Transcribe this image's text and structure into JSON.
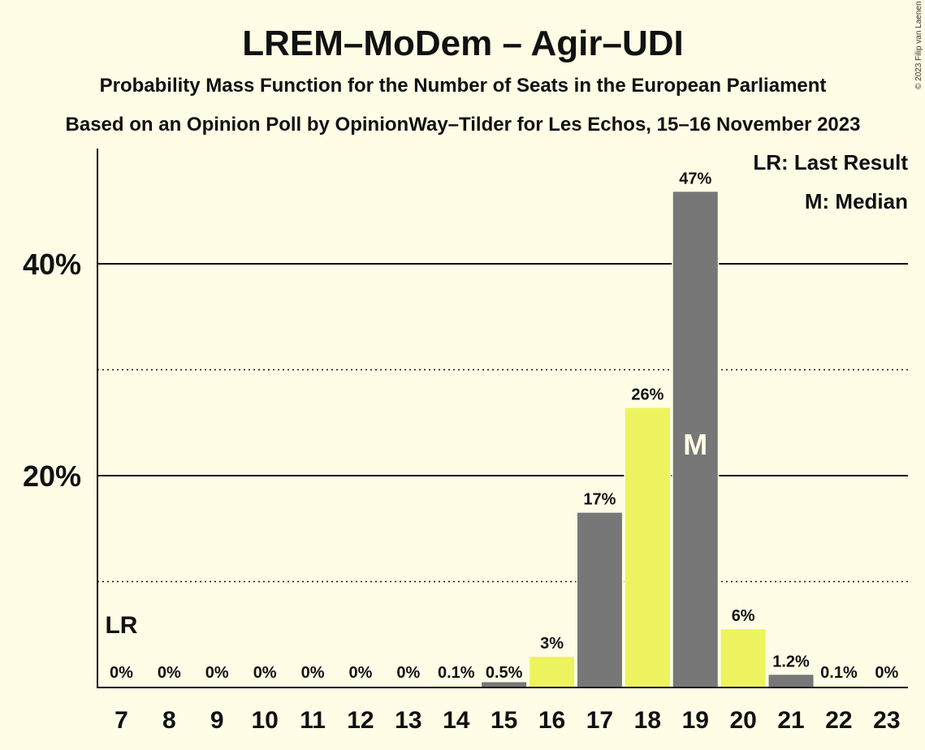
{
  "chart_data": {
    "type": "bar",
    "title": "LREM–MoDem – Agir–UDI",
    "subtitle": "Probability Mass Function for the Number of Seats in the European Parliament",
    "subtitle2": "Based on an Opinion Poll by OpinionWay–Tilder for Les Echos, 15–16 November 2023",
    "categories": [
      "7",
      "8",
      "9",
      "10",
      "11",
      "12",
      "13",
      "14",
      "15",
      "16",
      "17",
      "18",
      "19",
      "20",
      "21",
      "22",
      "23"
    ],
    "values": [
      0,
      0,
      0,
      0,
      0,
      0,
      0,
      0.1,
      0.5,
      2.9,
      16.5,
      26.4,
      46.8,
      5.5,
      1.2,
      0.1,
      0
    ],
    "labels": [
      "0%",
      "0%",
      "0%",
      "0%",
      "0%",
      "0%",
      "0%",
      "0.1%",
      "0.5%",
      "3%",
      "17%",
      "26%",
      "47%",
      "6%",
      "1.2%",
      "0.1%",
      "0%"
    ],
    "colors": [
      "#777777",
      "#EEF45F",
      "#777777",
      "#EEF45F",
      "#777777",
      "#EEF45F",
      "#777777",
      "#EEF45F",
      "#777777",
      "#EEF45F",
      "#777777",
      "#EEF45F",
      "#777777",
      "#EEF45F",
      "#777777",
      "#EEF45F",
      "#777777"
    ],
    "ylim": [
      0,
      50
    ],
    "yticks": [
      {
        "value": 20,
        "label": "20%"
      },
      {
        "value": 40,
        "label": "40%"
      }
    ],
    "minor_gridlines": [
      10,
      30
    ],
    "last_result": {
      "category": "7",
      "marker": "LR"
    },
    "median": {
      "category": "19",
      "marker": "M"
    },
    "legend": [
      "LR: Last Result",
      "M: Median"
    ],
    "legend_position": "top-right",
    "copyright": "© 2023 Filip van Laenen"
  }
}
